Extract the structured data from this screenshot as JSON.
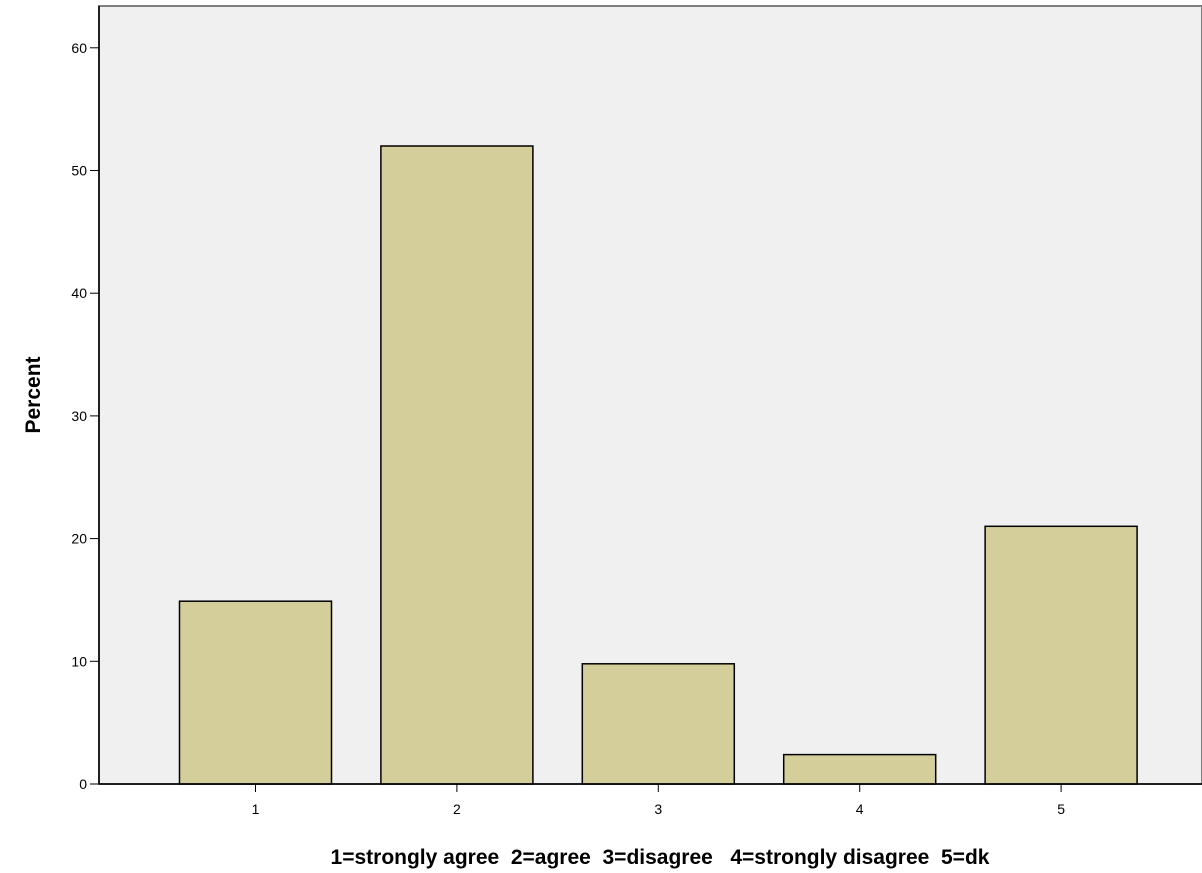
{
  "chart_data": {
    "type": "bar",
    "categories": [
      "1",
      "2",
      "3",
      "4",
      "5"
    ],
    "values": [
      14.9,
      52.0,
      9.8,
      2.4,
      21.0
    ],
    "title": "",
    "xlabel": "1=strongly agree  2=agree  3=disagree   4=strongly disagree  5=dk",
    "ylabel": "Percent",
    "ylim": [
      0,
      62
    ],
    "yticks": [
      0,
      10,
      20,
      30,
      40,
      50,
      60
    ],
    "grid": false,
    "legend": "none",
    "colors": {
      "bar_fill": "#d4cf9a",
      "bar_stroke": "#000000",
      "plot_background": "#f0f0f0",
      "plot_border": "#808080"
    }
  }
}
